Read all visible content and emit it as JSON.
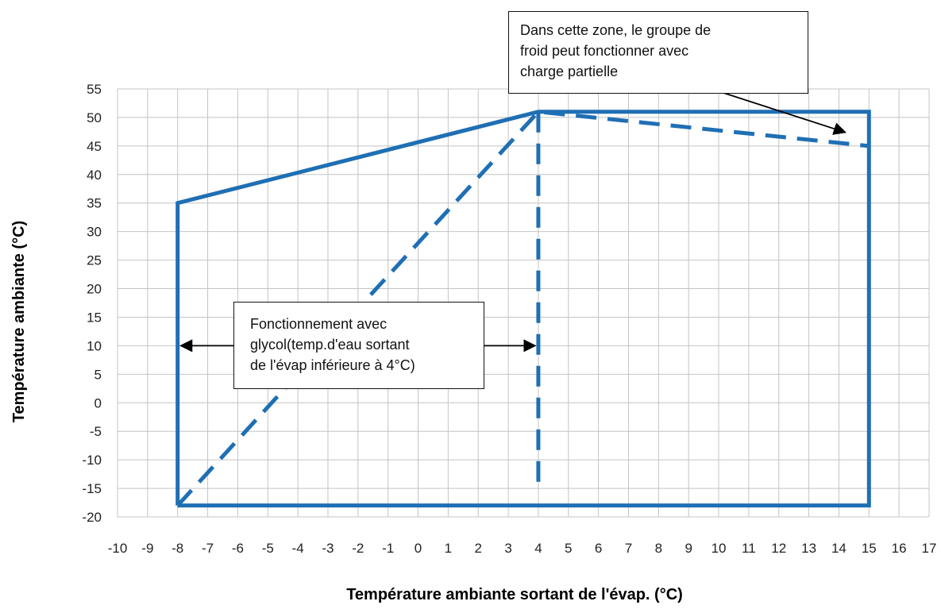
{
  "chart_data": {
    "type": "line",
    "xlabel": "Température ambiante sortant de l'évap. (°C)",
    "ylabel": "Température ambiante (°C)",
    "xlim": [
      -10,
      17
    ],
    "ylim": [
      -20,
      55
    ],
    "x_ticks": [
      "-10",
      "-9",
      "-8",
      "-7",
      "-6",
      "-5",
      "-4",
      "-3",
      "-2",
      "-1",
      "0",
      "1",
      "2",
      "3",
      "4",
      "5",
      "6",
      "7",
      "8",
      "9",
      "10",
      "11",
      "12",
      "13",
      "14",
      "15",
      "16",
      "17"
    ],
    "y_ticks": [
      "-20",
      "-15",
      "-10",
      "-5",
      "0",
      "5",
      "10",
      "15",
      "20",
      "25",
      "30",
      "35",
      "40",
      "45",
      "50",
      "55"
    ],
    "grid": true,
    "color": "#1f6fb4",
    "series": [
      {
        "style": "solid",
        "points": [
          [
            -8,
            -18
          ],
          [
            -8,
            35
          ],
          [
            4,
            51
          ],
          [
            15,
            51
          ],
          [
            15,
            -18
          ],
          [
            -8,
            -18
          ]
        ]
      },
      {
        "style": "dashed",
        "points": [
          [
            -8,
            -18
          ],
          [
            4,
            51
          ],
          [
            15,
            45
          ]
        ]
      },
      {
        "style": "dashed",
        "points": [
          [
            4,
            51
          ],
          [
            4,
            -15
          ]
        ]
      }
    ],
    "annotations": [
      {
        "lines": [
          "Dans cette zone, le groupe de",
          "froid peut fonctionner avec",
          "charge partielle"
        ],
        "arrow_to": [
          14,
          46
        ]
      },
      {
        "lines": [
          "Fonctionnement avec",
          "glycol(temp.d'eau sortant",
          "de l'évap inférieure à 4°C)"
        ],
        "arrows_to": [
          [
            -8,
            10
          ],
          [
            4,
            10
          ]
        ]
      }
    ]
  }
}
